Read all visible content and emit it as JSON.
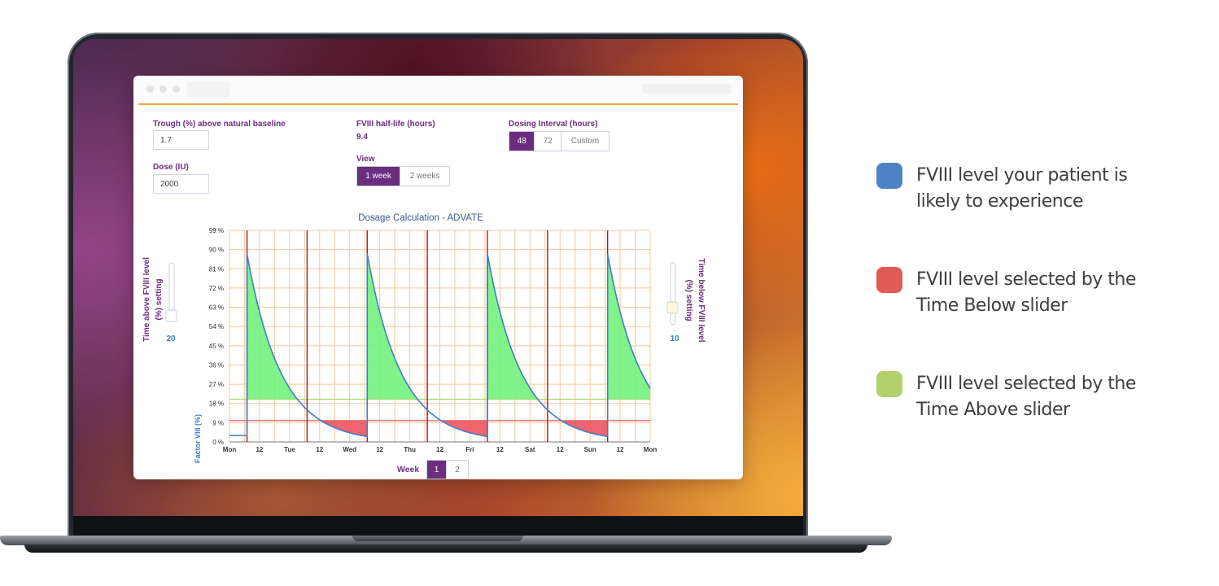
{
  "app": {
    "trough_label": "Trough (%) above natural baseline",
    "trough_value": "1.7",
    "dose_label": "Dose (IU)",
    "dose_value": "2000",
    "halflife_label": "FVIII half-life (hours)",
    "halflife_value": "9.4",
    "view_label": "View",
    "view_options": [
      "1 week",
      "2 weeks"
    ],
    "view_selected": "1 week",
    "interval_label": "Dosing Interval (hours)",
    "interval_options": [
      "48",
      "72",
      "Custom"
    ],
    "interval_selected": "48",
    "left_slider_label": "Time above FVIII level (%) setting",
    "left_slider_value": "20",
    "right_slider_label": "Time below FVIII level (%) setting",
    "right_slider_value": "10",
    "week_label": "Week",
    "week_options": [
      "1",
      "2"
    ],
    "week_selected": "1"
  },
  "legend": [
    {
      "text": "FVIII level your patient is likely to experience",
      "color": "#4f82c4"
    },
    {
      "text": "FVIII level selected by the Time Below slider",
      "color": "#e05a57"
    },
    {
      "text": "FVIII level selected by the Time Above slider",
      "color": "#b3d16b"
    }
  ],
  "chart_data": {
    "type": "line",
    "title": "Dosage Calculation - ADVATE",
    "ylabel": "Factor VIII (%)",
    "xlabel": "",
    "y_ticks": [
      "0 %",
      "9 %",
      "18 %",
      "27 %",
      "36 %",
      "45 %",
      "54 %",
      "63 %",
      "72 %",
      "81 %",
      "90 %",
      "99 %"
    ],
    "ylim": [
      0,
      99
    ],
    "x_ticks": [
      "Mon",
      "12",
      "Tue",
      "12",
      "Wed",
      "12",
      "Thu",
      "12",
      "Fri",
      "12",
      "Sat",
      "12",
      "Sun",
      "12",
      "Mon"
    ],
    "xlim_hours": [
      0,
      168
    ],
    "dose_times_hours": [
      7,
      55,
      103,
      151
    ],
    "dose_marker_hours": [
      7,
      31,
      55,
      79,
      103,
      127,
      151
    ],
    "peak_percent": 88,
    "trough_percent": 3,
    "half_life_hours": 9.4,
    "time_above_threshold_percent": 20,
    "time_below_threshold_percent": 10,
    "series": [
      {
        "name": "FVIII level",
        "color": "#3f7ec9"
      }
    ],
    "fill_above_color": "#72f27e",
    "fill_below_color": "#ef5461",
    "grid": true
  }
}
